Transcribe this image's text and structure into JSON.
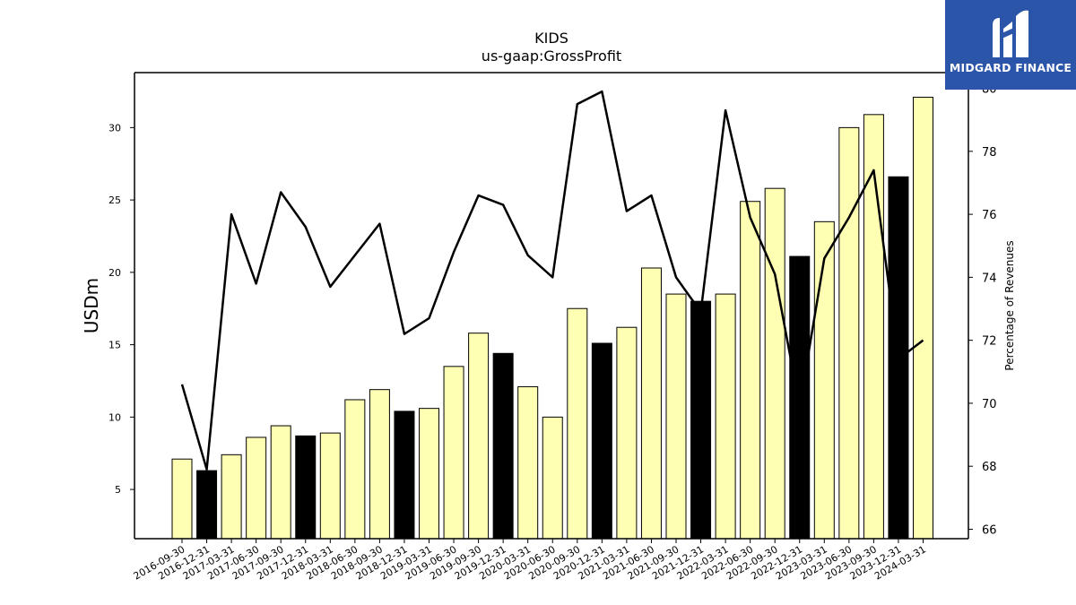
{
  "chart_data": {
    "type": "bar+line",
    "title": "KIDS",
    "subtitle": "us-gaap:GrossProfit",
    "ylabel": "USDm",
    "y2label": "Percentage of Revenues",
    "ylim": [
      1.6,
      33.8
    ],
    "y2lim": [
      65.7,
      80.5
    ],
    "yticks": [
      5,
      10,
      15,
      20,
      25,
      30
    ],
    "y2ticks": [
      66,
      68,
      70,
      72,
      74,
      76,
      78,
      80
    ],
    "categories": [
      "2016-09-30",
      "2016-12-31",
      "2017-03-31",
      "2017-06-30",
      "2017-09-30",
      "2017-12-31",
      "2018-03-31",
      "2018-06-30",
      "2018-09-30",
      "2018-12-31",
      "2019-03-31",
      "2019-06-30",
      "2019-09-30",
      "2019-12-31",
      "2020-03-31",
      "2020-06-30",
      "2020-09-30",
      "2020-12-31",
      "2021-03-31",
      "2021-06-30",
      "2021-09-30",
      "2021-12-31",
      "2022-03-31",
      "2022-06-30",
      "2022-09-30",
      "2022-12-31",
      "2023-03-31",
      "2023-06-30",
      "2023-09-30",
      "2023-12-31",
      "2024-03-31"
    ],
    "series": [
      {
        "kind": "bar",
        "values": [
          7.1,
          6.3,
          7.4,
          8.6,
          9.4,
          8.7,
          8.9,
          11.2,
          11.9,
          10.4,
          10.6,
          13.5,
          15.8,
          14.4,
          12.1,
          10.0,
          17.5,
          15.1,
          16.2,
          20.3,
          18.5,
          18.0,
          18.5,
          24.9,
          25.8,
          21.1,
          23.5,
          30.0,
          30.9,
          26.6,
          32.1
        ],
        "highlight": [
          false,
          true,
          false,
          false,
          false,
          true,
          false,
          false,
          false,
          true,
          false,
          false,
          false,
          true,
          false,
          false,
          false,
          true,
          false,
          false,
          false,
          true,
          false,
          false,
          false,
          true,
          false,
          false,
          false,
          true,
          false
        ]
      },
      {
        "kind": "line",
        "axis": "right",
        "values": [
          70.6,
          67.9,
          76.0,
          73.8,
          76.7,
          75.6,
          73.7,
          74.7,
          75.7,
          72.2,
          72.7,
          74.8,
          76.6,
          76.3,
          74.7,
          74.0,
          79.5,
          79.9,
          76.1,
          76.6,
          74.0,
          72.9,
          79.3,
          75.9,
          74.1,
          69.9,
          74.6,
          75.9,
          77.4,
          71.4,
          72.0
        ]
      }
    ],
    "colors": {
      "bar": "#ffffb3",
      "bar_highlight": "#000000",
      "line": "#000000"
    },
    "grid": false,
    "legend": "none"
  },
  "logo": {
    "text": "MIDGARD FINANCE",
    "color": "#2a55a8"
  }
}
